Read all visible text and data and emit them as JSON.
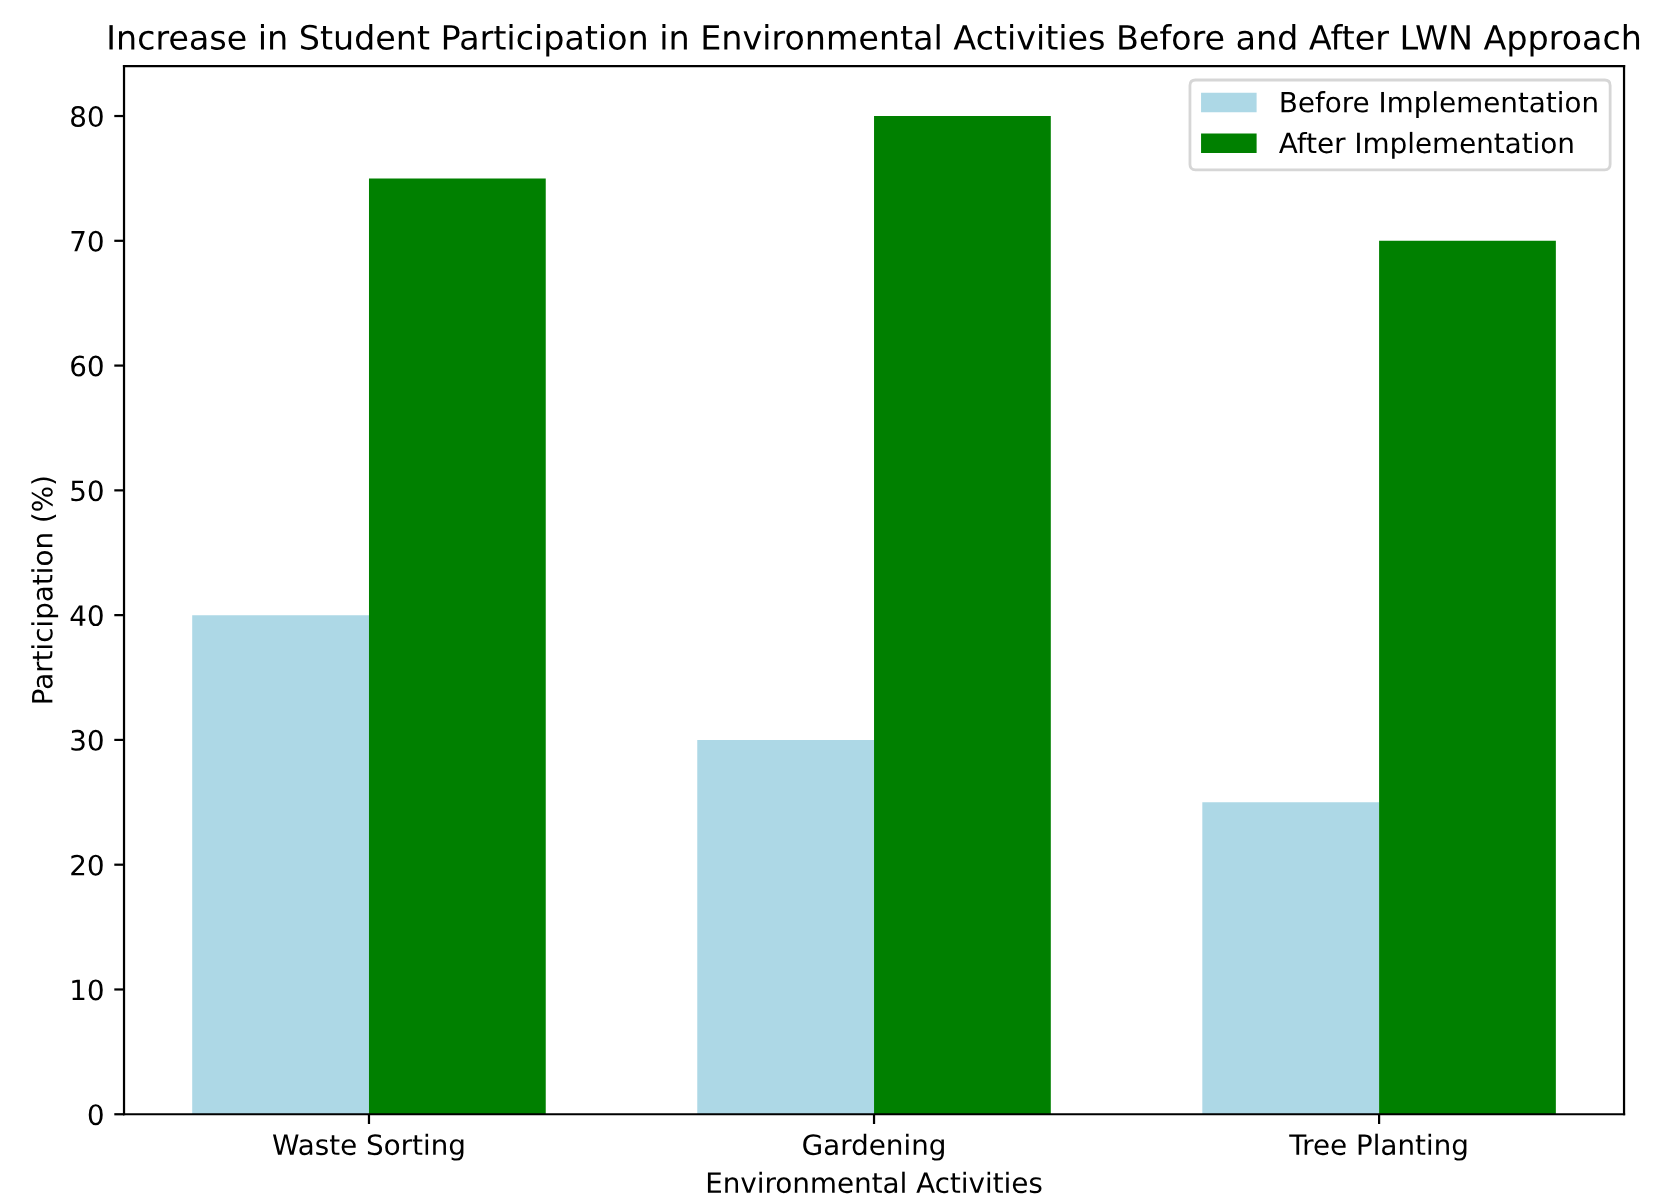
{
  "chart_data": {
    "type": "bar",
    "title": "Increase in Student Participation in Environmental Activities Before and After LWN Approach",
    "xlabel": "Environmental Activities",
    "ylabel": "Participation (%)",
    "categories": [
      "Waste Sorting",
      "Gardening",
      "Tree Planting"
    ],
    "series": [
      {
        "name": "Before Implementation",
        "color": "#add8e6",
        "values": [
          40,
          30,
          25
        ]
      },
      {
        "name": "After Implementation",
        "color": "#008000",
        "values": [
          75,
          80,
          70
        ]
      }
    ],
    "ylim": [
      0,
      84
    ],
    "yticks": [
      0,
      10,
      20,
      30,
      40,
      50,
      60,
      70,
      80
    ],
    "grid": false,
    "legend": "top right"
  }
}
